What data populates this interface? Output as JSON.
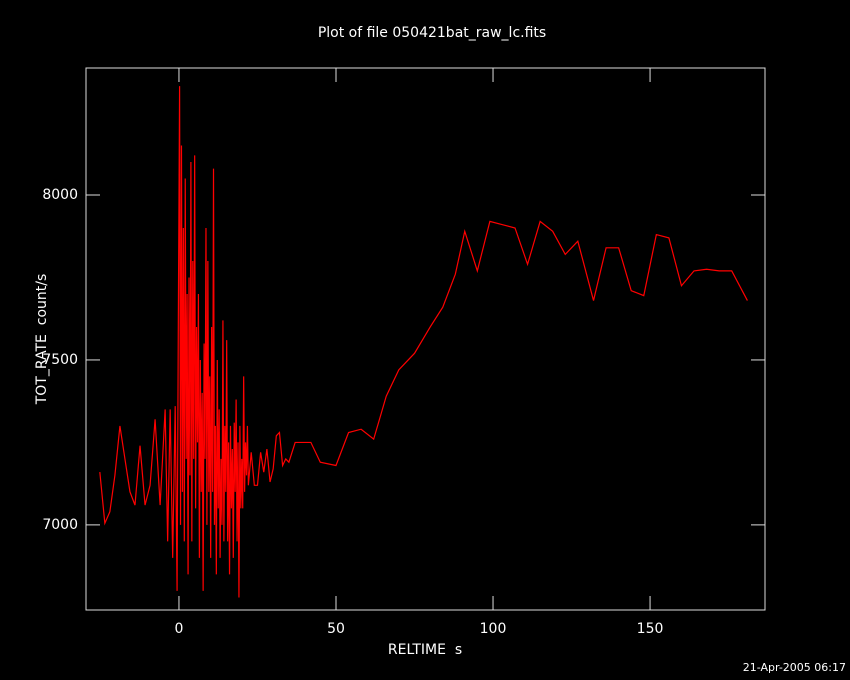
{
  "chart_data": {
    "type": "line",
    "title": "Plot of file 050421bat_raw_lc.fits",
    "xlabel": "RELTIME  s",
    "ylabel": "TOT_RATE  count/s",
    "timestamp": "21-Apr-2005 06:17",
    "xlim": [
      -29.6,
      186.6
    ],
    "ylim": [
      6742,
      8385
    ],
    "xticks": [
      0,
      50,
      100,
      150
    ],
    "yticks": [
      7000,
      7500,
      8000
    ],
    "x": [
      -25.2,
      -23.6,
      -22.0,
      -20.4,
      -18.8,
      -17.2,
      -15.6,
      -14.0,
      -12.4,
      -10.8,
      -9.2,
      -7.6,
      -6.0,
      -4.4,
      -3.6,
      -2.8,
      -2.0,
      -1.2,
      -0.6,
      -0.2,
      0.2,
      0.5,
      0.8,
      1.1,
      1.4,
      1.7,
      2.0,
      2.3,
      2.6,
      2.9,
      3.2,
      3.5,
      3.8,
      4.1,
      4.4,
      4.7,
      5.0,
      5.3,
      5.6,
      5.9,
      6.2,
      6.5,
      6.8,
      7.1,
      7.4,
      7.7,
      8.0,
      8.3,
      8.6,
      8.9,
      9.2,
      9.5,
      9.8,
      10.1,
      10.4,
      10.7,
      11.0,
      11.3,
      11.6,
      11.9,
      12.2,
      12.5,
      12.8,
      13.1,
      13.4,
      13.7,
      14.0,
      14.3,
      14.6,
      14.9,
      15.2,
      15.5,
      15.8,
      16.1,
      16.4,
      16.7,
      17.0,
      17.3,
      17.6,
      17.9,
      18.2,
      18.5,
      18.8,
      19.1,
      19.4,
      19.7,
      20.0,
      20.3,
      20.6,
      20.9,
      21.2,
      21.5,
      21.8,
      22.1,
      23.0,
      24.0,
      25.0,
      26.0,
      27.0,
      28.0,
      29.0,
      30.0,
      31.0,
      32.0,
      33.0,
      34.0,
      35.0,
      37.0,
      40.0,
      42.0,
      45.0,
      50.0,
      54.0,
      58.0,
      62.0,
      66.0,
      70.0,
      75.0,
      80.0,
      84.0,
      88.0,
      91.0,
      95.0,
      99.0,
      103.0,
      107.0,
      111.0,
      115.0,
      119.0,
      123.0,
      127.0,
      132.0,
      136.0,
      140.0,
      144.0,
      148.0,
      152.0,
      156.0,
      160.0,
      164.0,
      168.0,
      172.0,
      176.0,
      181.0
    ],
    "series": [
      {
        "color": "#ff0000",
        "values": [
          7160,
          7005,
          7040,
          7150,
          7300,
          7200,
          7100,
          7060,
          7240,
          7060,
          7120,
          7320,
          7060,
          7350,
          6950,
          7350,
          6900,
          7360,
          6800,
          7620,
          8330,
          7000,
          8150,
          7100,
          7900,
          6950,
          8050,
          7200,
          7700,
          6850,
          7750,
          7150,
          8100,
          6950,
          7800,
          7200,
          8120,
          7050,
          7600,
          7250,
          7700,
          6900,
          7500,
          7100,
          7400,
          6800,
          7550,
          7200,
          7900,
          7000,
          7800,
          7100,
          7450,
          6900,
          7600,
          7100,
          8080,
          7000,
          7300,
          6850,
          7500,
          7050,
          7350,
          6900,
          7200,
          7000,
          7620,
          6950,
          7300,
          7100,
          7560,
          6950,
          7250,
          6850,
          7300,
          7050,
          7230,
          6900,
          7310,
          7100,
          7380,
          6950,
          7250,
          6780,
          7300,
          7050,
          7200,
          7050,
          7450,
          7100,
          7250,
          7150,
          7300,
          7120,
          7220,
          7120,
          7120,
          7220,
          7160,
          7230,
          7130,
          7170,
          7270,
          7280,
          7180,
          7200,
          7190,
          7250,
          7250,
          7250,
          7190,
          7180,
          7280,
          7290,
          7260,
          7390,
          7470,
          7520,
          7600,
          7660,
          7760,
          7890,
          7770,
          7920,
          7910,
          7900,
          7790,
          7920,
          7890,
          7820,
          7860,
          7680,
          7840,
          7840,
          7710,
          7695,
          7880,
          7870,
          7725,
          7770,
          7775,
          7770,
          7770,
          7680
        ]
      }
    ]
  }
}
